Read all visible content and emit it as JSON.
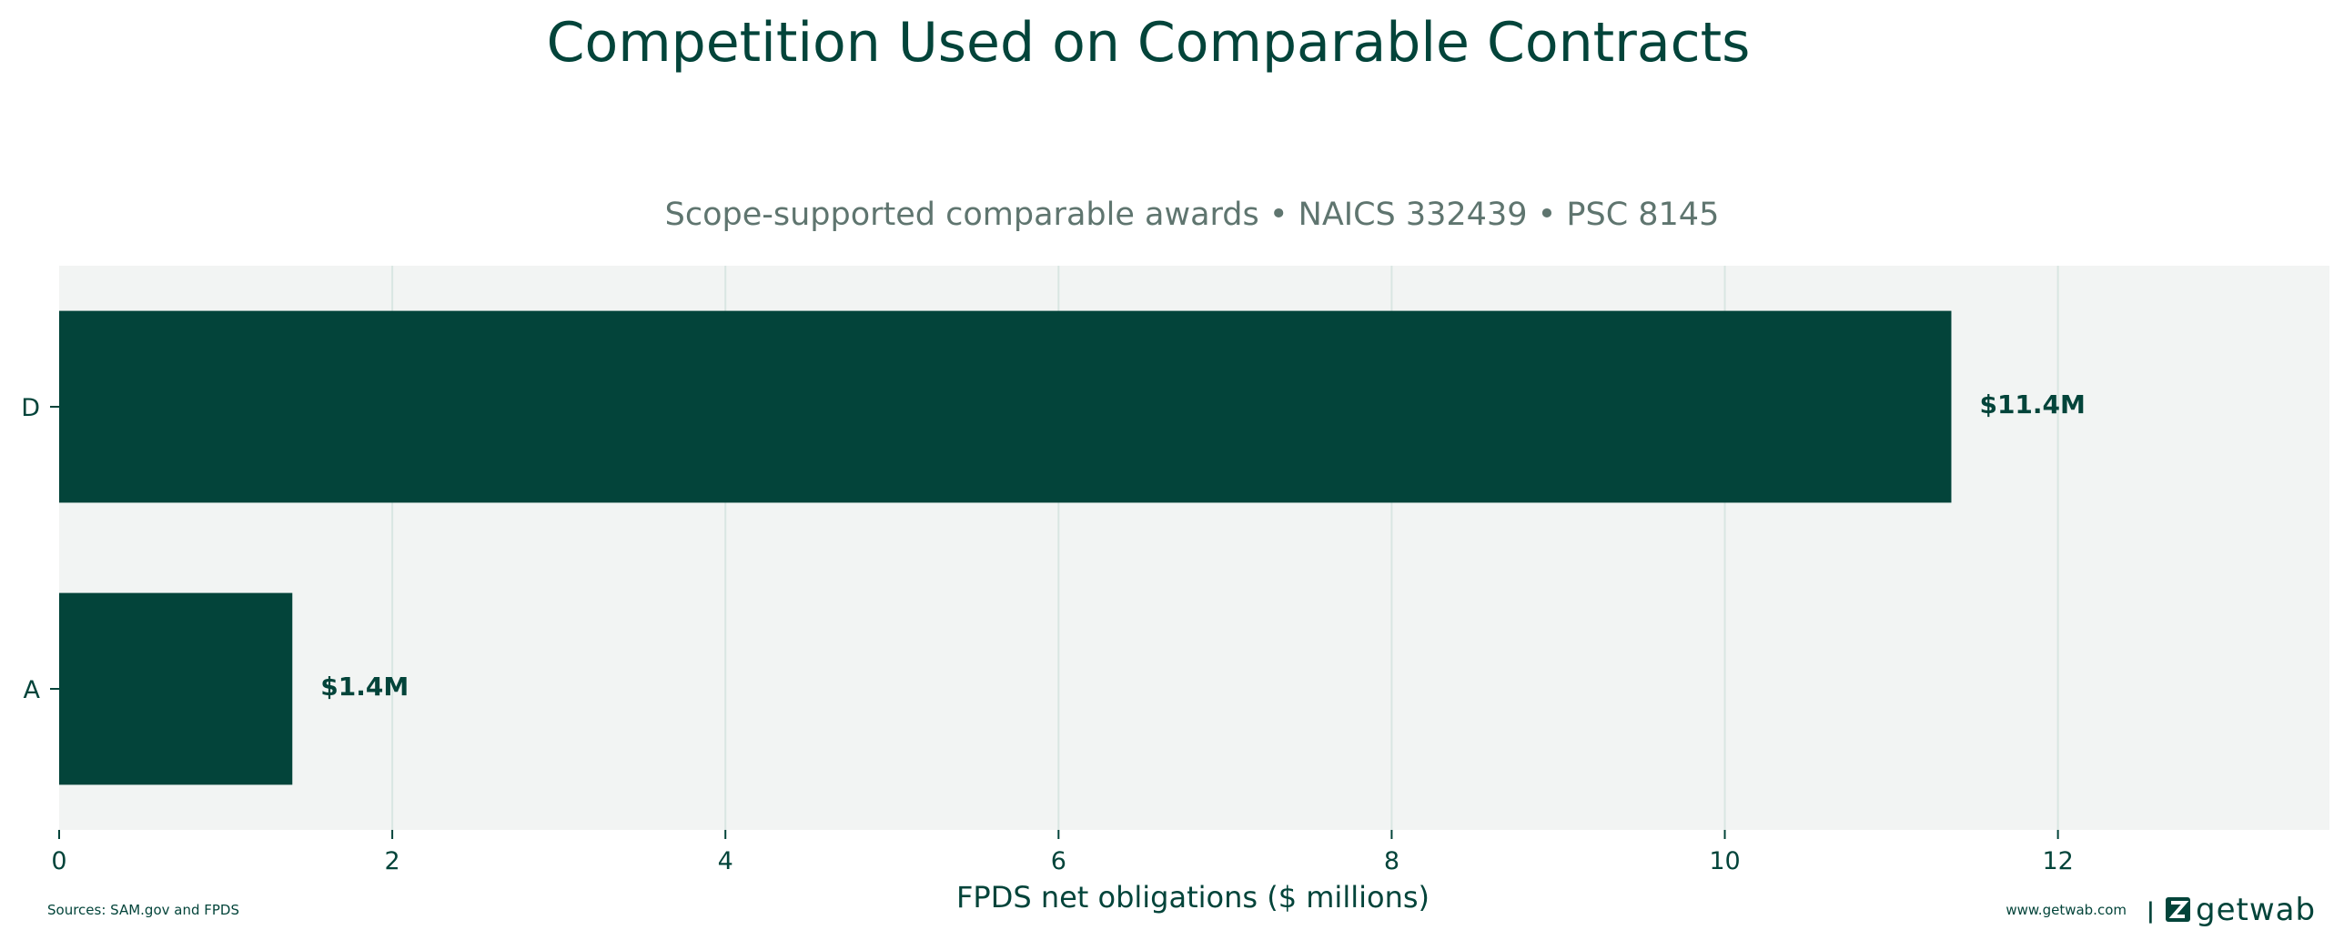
{
  "chart_data": {
    "type": "bar",
    "orientation": "horizontal",
    "title": "Competition Used on Comparable Contracts",
    "subtitle": "Scope-supported comparable awards • NAICS 332439 • PSC 8145",
    "xlabel": "FPDS net obligations ($ millions)",
    "ylabel": "",
    "categories": [
      "D",
      "A"
    ],
    "values": [
      11.36,
      1.4
    ],
    "value_labels": [
      "$11.4M",
      "$1.4M"
    ],
    "xlim": [
      0,
      13.63
    ],
    "xticks": [
      0,
      2,
      4,
      6,
      8,
      10,
      12
    ],
    "grid": "vertical",
    "legend": "none"
  },
  "footer": {
    "sources": "Sources: SAM.gov and FPDS",
    "website": "www.getwab.com",
    "separator": "|",
    "logo_text": "getwab"
  },
  "colors": {
    "bar": "#03443a",
    "plot_background": "#f2f4f3",
    "grid": "#d9e6e2",
    "text": "#03443a",
    "subtitle": "#5f756f"
  }
}
